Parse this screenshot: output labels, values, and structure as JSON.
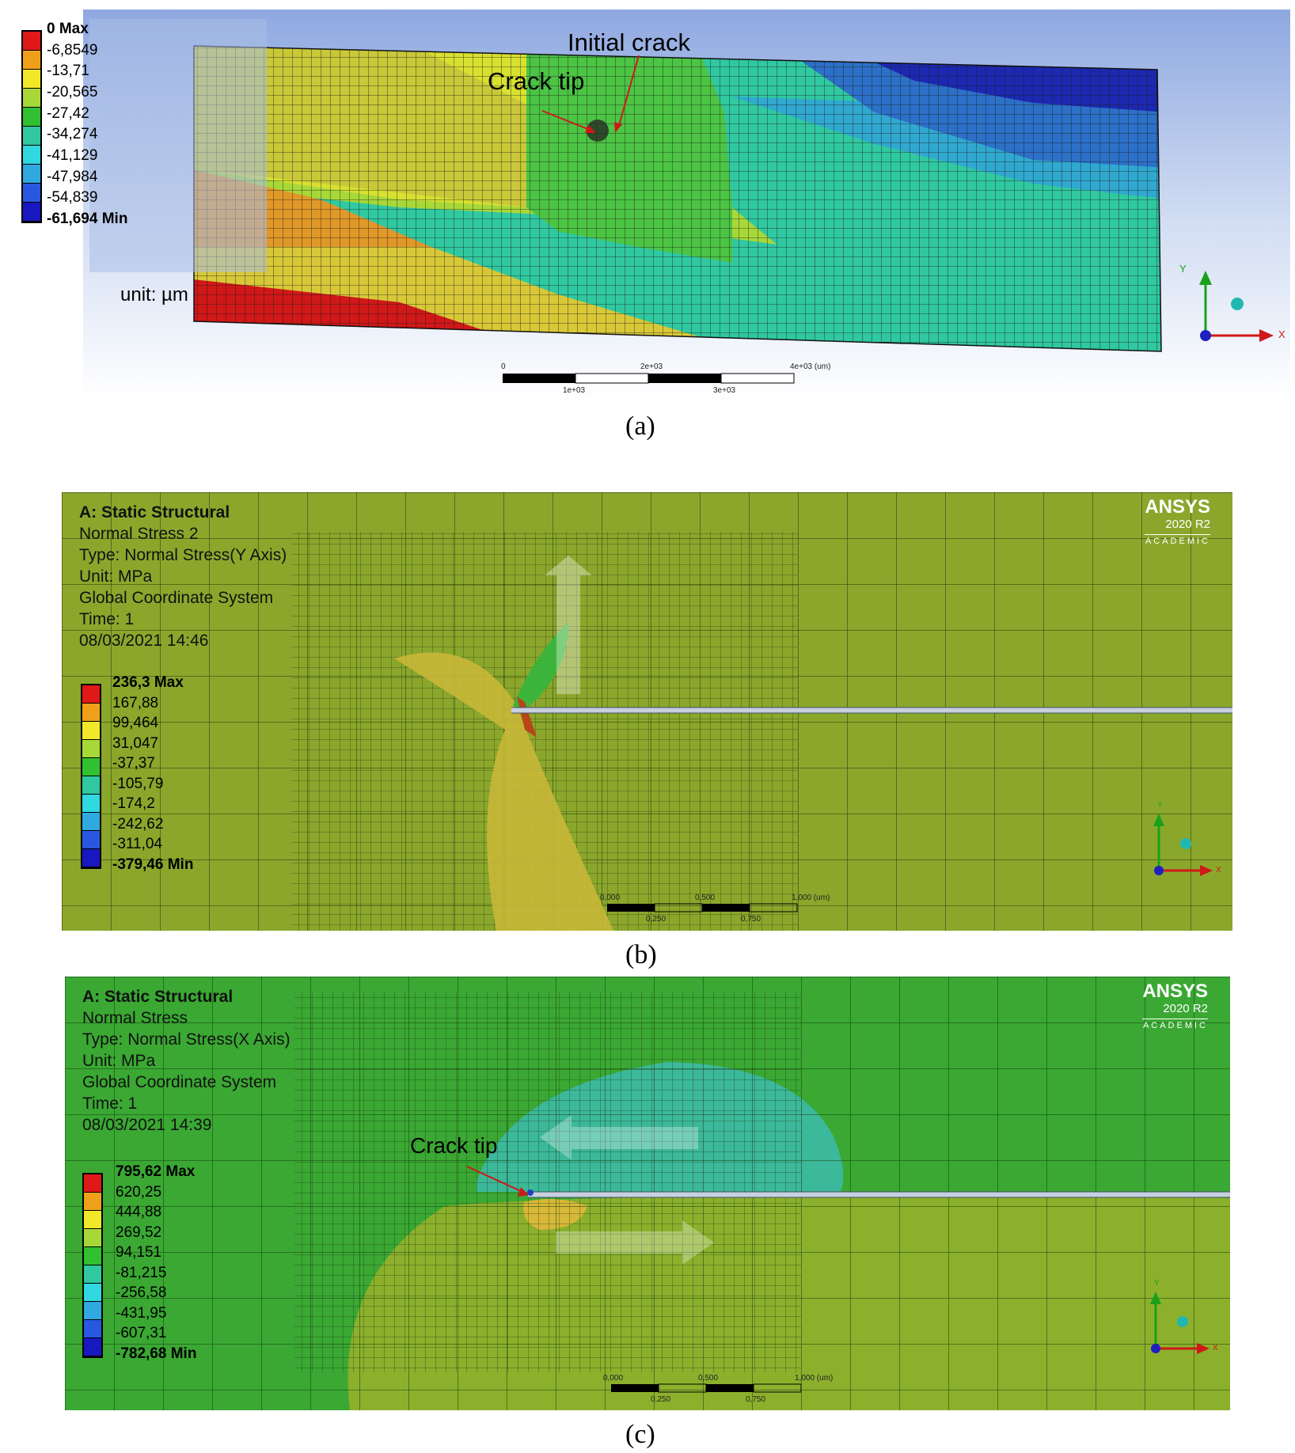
{
  "panel_a": {
    "legend": [
      "0 Max",
      "-6,8549",
      "-13,71",
      "-20,565",
      "-27,42",
      "-34,274",
      "-41,129",
      "-47,984",
      "-54,839",
      "-61,694 Min"
    ],
    "legend_colors": [
      "#e01818",
      "#f0a018",
      "#f0e828",
      "#a8d838",
      "#30c030",
      "#30c8a0",
      "#30d8e0",
      "#30a8e0",
      "#2858e0",
      "#1818c0"
    ],
    "unit": "unit: µm",
    "annotations": {
      "initial_crack": "Initial crack",
      "crack_tip": "Crack tip"
    },
    "scale": {
      "top": [
        "0",
        "2e+03",
        "4e+03 (um)"
      ],
      "bottom": [
        "1e+03",
        "3e+03"
      ]
    },
    "triad": {
      "y": "Y",
      "x": "X"
    },
    "caption": "(a)"
  },
  "panel_b": {
    "header": [
      "A: Static Structural",
      "Normal Stress 2",
      "Type: Normal Stress(Y Axis)",
      "Unit: MPa",
      "Global Coordinate System",
      "Time: 1",
      "08/03/2021 14:46"
    ],
    "legend": [
      "236,3 Max",
      "167,88",
      "99,464",
      "31,047",
      "-37,37",
      "-105,79",
      "-174,2",
      "-242,62",
      "-311,04",
      "-379,46 Min"
    ],
    "legend_colors": [
      "#e01818",
      "#f0a018",
      "#f0e828",
      "#a8d838",
      "#30c030",
      "#30c8a0",
      "#30d8e0",
      "#30a8e0",
      "#2858e0",
      "#1818c0"
    ],
    "brand": {
      "name": "ANSYS",
      "version": "2020 R2",
      "edition": "ACADEMIC"
    },
    "scale": {
      "top": [
        "0,000",
        "0,500",
        "1,000 (um)"
      ],
      "bottom": [
        "0,250",
        "0,750"
      ]
    },
    "triad": {
      "y": "Y",
      "x": "X"
    },
    "caption": "(b)"
  },
  "panel_c": {
    "header": [
      "A: Static Structural",
      "Normal Stress",
      "Type: Normal Stress(X Axis)",
      "Unit: MPa",
      "Global Coordinate System",
      "Time: 1",
      "08/03/2021 14:39"
    ],
    "legend": [
      "795,62 Max",
      "620,25",
      "444,88",
      "269,52",
      "94,151",
      "-81,215",
      "-256,58",
      "-431,95",
      "-607,31",
      "-782,68 Min"
    ],
    "legend_colors": [
      "#e01818",
      "#f0a018",
      "#f0e828",
      "#a8d838",
      "#30c030",
      "#30c8a0",
      "#30d8e0",
      "#30a8e0",
      "#2858e0",
      "#1818c0"
    ],
    "brand": {
      "name": "ANSYS",
      "version": "2020 R2",
      "edition": "ACADEMIC"
    },
    "annotations": {
      "crack_tip": "Crack tip"
    },
    "scale": {
      "top": [
        "0,000",
        "0,500",
        "1,000 (um)"
      ],
      "bottom": [
        "0,250",
        "0,750"
      ]
    },
    "triad": {
      "y": "Y",
      "x": "X"
    },
    "caption": "(c)"
  }
}
